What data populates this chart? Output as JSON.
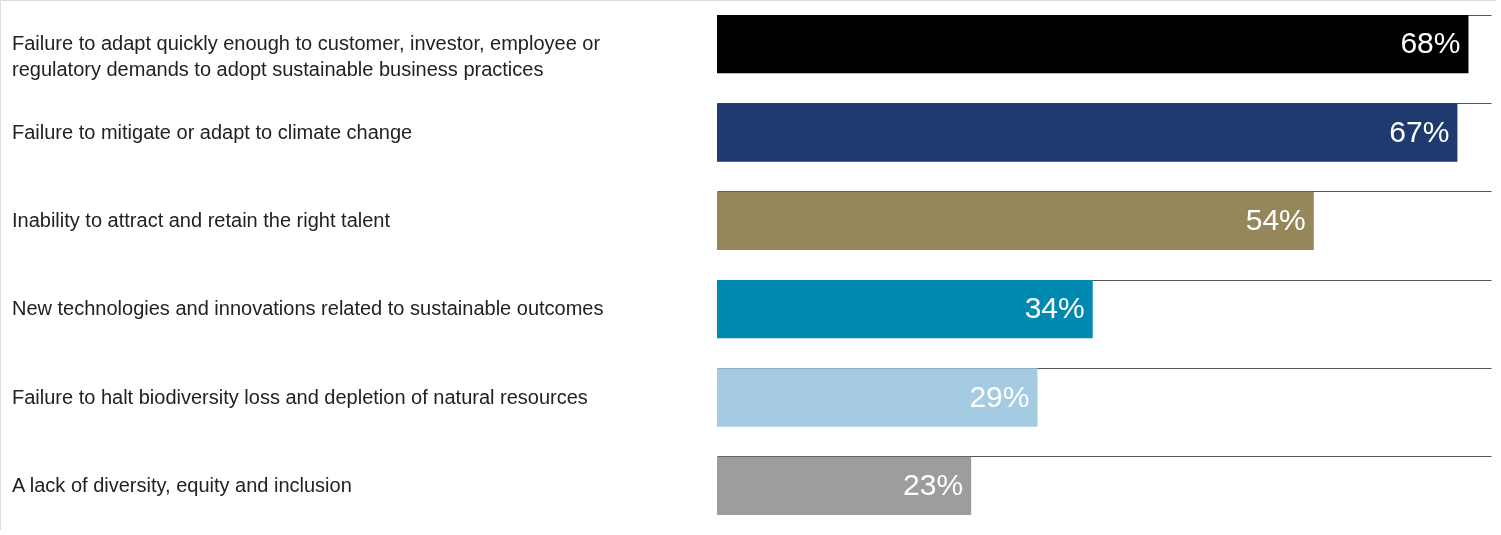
{
  "chart_data": {
    "type": "bar",
    "orientation": "horizontal",
    "categories": [
      "Failure to adapt quickly enough to customer, investor, employee or regulatory demands to adopt sustainable business practices",
      "Failure to mitigate or adapt to climate change",
      "Inability to attract and retain the right talent",
      "New technologies and innovations related to sustainable outcomes",
      "Failure to halt biodiversity loss and depletion of natural resources",
      "A lack of diversity, equity and inclusion"
    ],
    "values": [
      68,
      67,
      54,
      34,
      29,
      23
    ],
    "colors": [
      "#000000",
      "#1f3a6e",
      "#95875a",
      "#0089b0",
      "#a5cbe3",
      "#9e9d9e"
    ],
    "value_labels": [
      "68%",
      "67%",
      "54%",
      "34%",
      "29%",
      "23%"
    ],
    "grid": "y",
    "legend": false,
    "tick_labels": false
  }
}
